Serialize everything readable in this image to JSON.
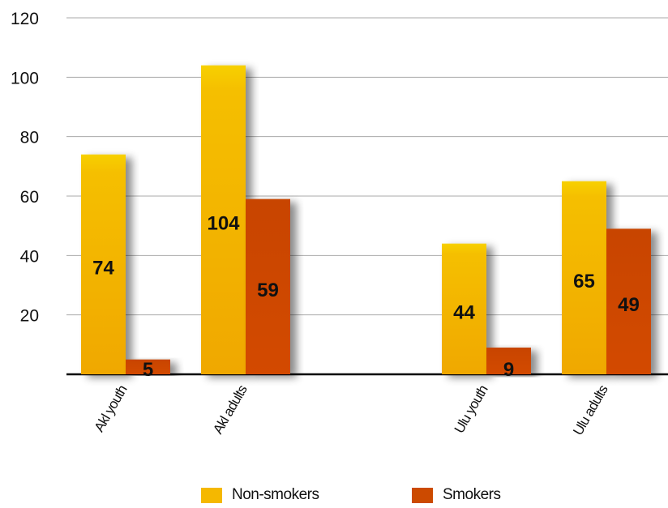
{
  "chart_data": {
    "type": "bar",
    "categories": [
      "Akl youth",
      "Akl adults",
      "Ulu youth",
      "Ulu adults"
    ],
    "series": [
      {
        "name": "Non-smokers",
        "color": "#f5b800",
        "values": [
          74,
          104,
          44,
          65
        ]
      },
      {
        "name": "Smokers",
        "color": "#cc4a00",
        "values": [
          5,
          59,
          9,
          49
        ]
      }
    ],
    "yticks": [
      20,
      40,
      60,
      80,
      100,
      120
    ],
    "ylim": [
      0,
      120
    ],
    "grid": true,
    "legend": "bottom",
    "title": "",
    "xlabel": "",
    "ylabel": ""
  }
}
